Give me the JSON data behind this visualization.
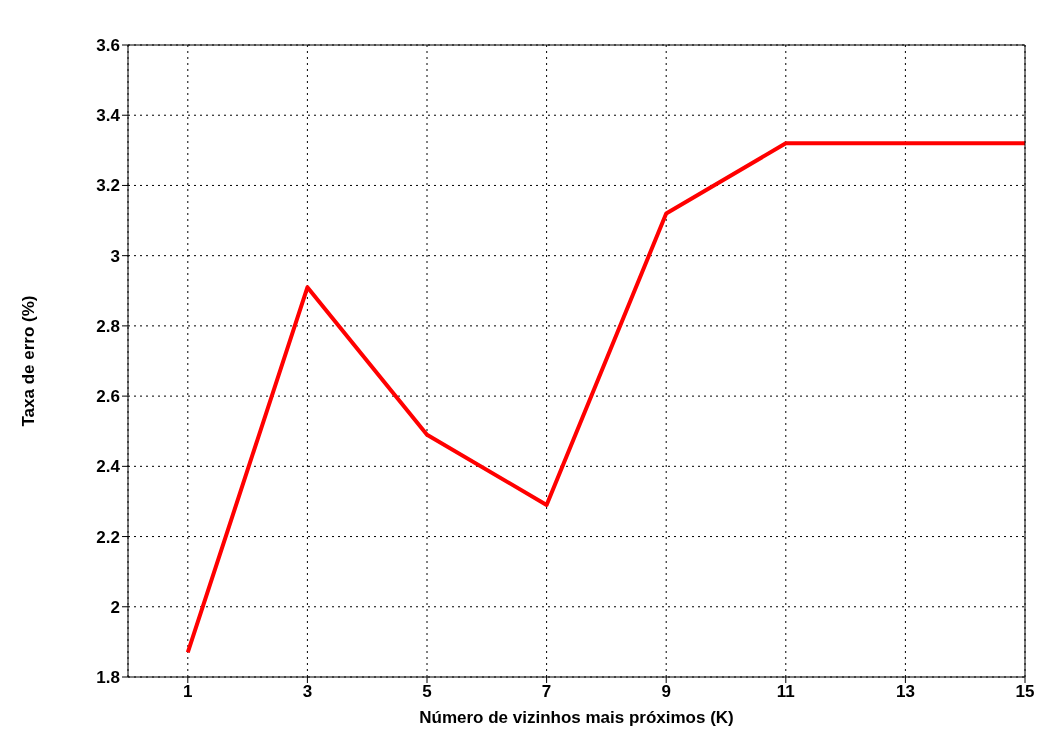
{
  "chart_data": {
    "type": "line",
    "xlabel": "Número de vizinhos mais próximos (K)",
    "ylabel": "Taxa de erro (%)",
    "x": [
      1,
      3,
      5,
      7,
      9,
      11,
      13,
      15
    ],
    "series": [
      {
        "color": "#ff0000",
        "values": [
          1.87,
          2.91,
          2.49,
          2.29,
          3.12,
          3.32,
          3.32,
          3.32
        ]
      }
    ],
    "xlim": [
      0,
      15
    ],
    "xticks": [
      1,
      3,
      5,
      7,
      9,
      11,
      13,
      15
    ],
    "ylim": [
      1.8,
      3.6
    ],
    "yticks": [
      1.8,
      2,
      2.2,
      2.4,
      2.6,
      2.8,
      3,
      3.2,
      3.4,
      3.6
    ],
    "grid": true,
    "marker": "none",
    "line_style": "solid",
    "legend": false
  }
}
